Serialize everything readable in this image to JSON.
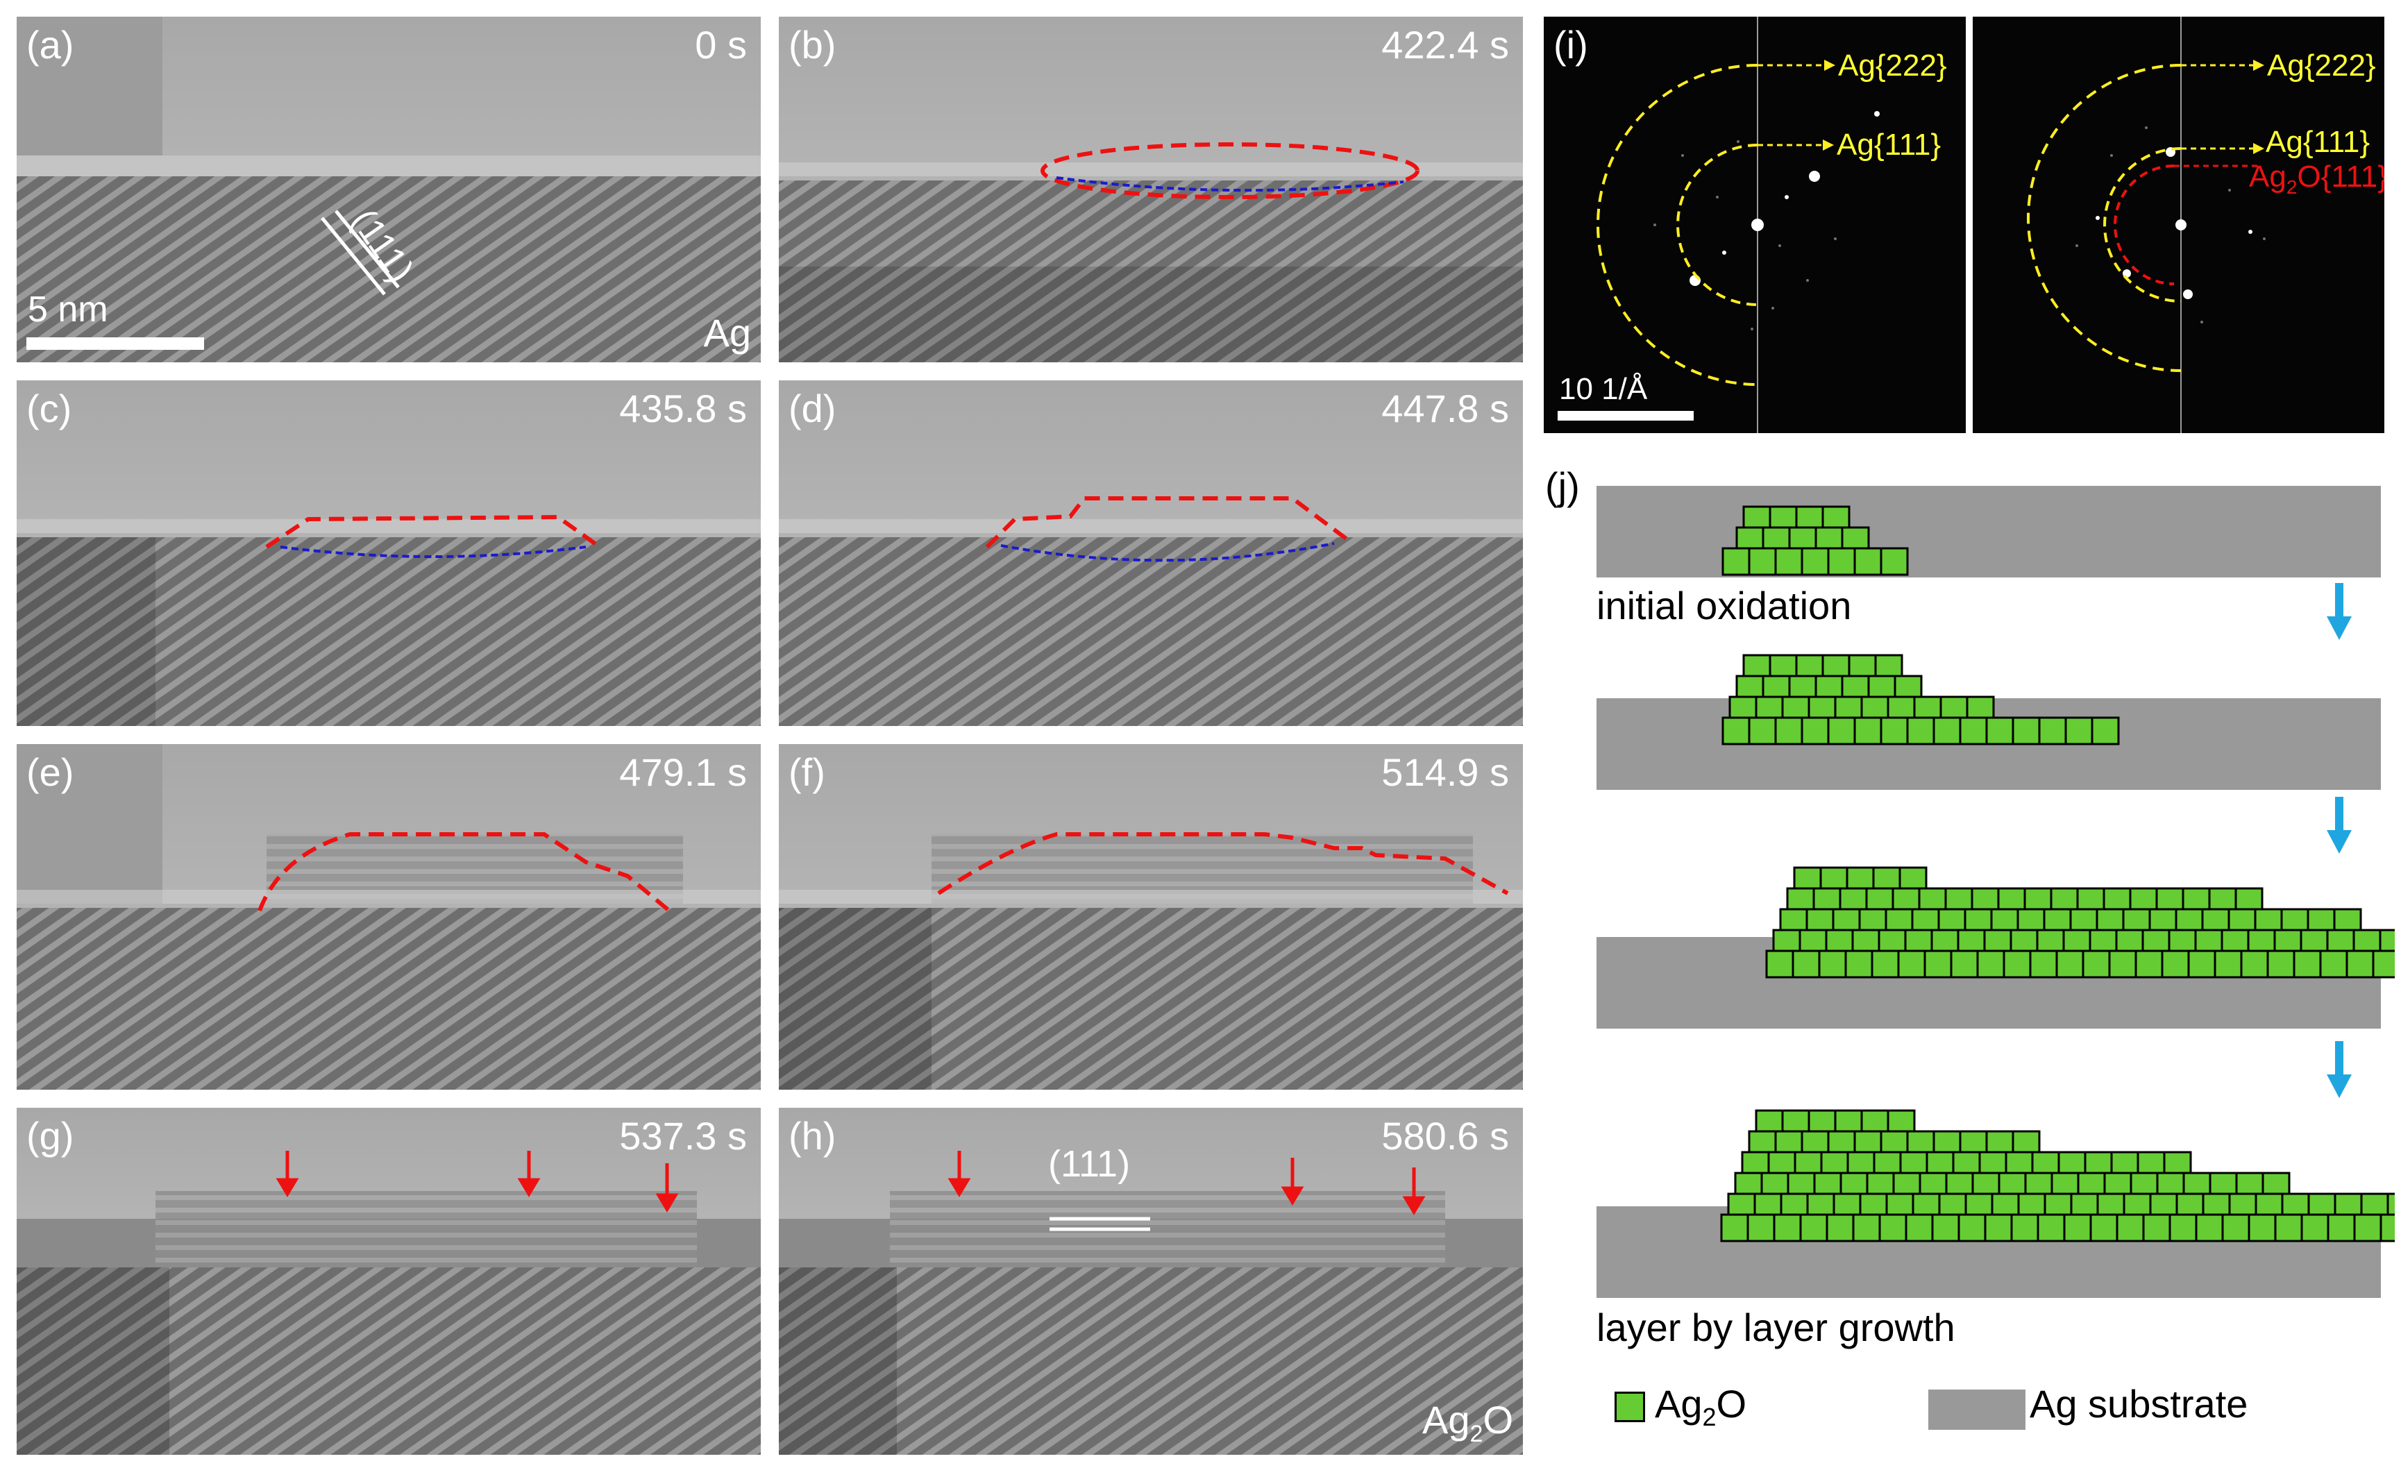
{
  "panels": [
    {
      "label": "(a)",
      "time": "0 s",
      "corner": "Ag",
      "scalebar": "5 nm",
      "plane": "(111)"
    },
    {
      "label": "(b)",
      "time": "422.4 s"
    },
    {
      "label": "(c)",
      "time": "435.8 s"
    },
    {
      "label": "(d)",
      "time": "447.8 s"
    },
    {
      "label": "(e)",
      "time": "479.1 s"
    },
    {
      "label": "(f)",
      "time": "514.9 s"
    },
    {
      "label": "(g)",
      "time": "537.3 s"
    },
    {
      "label": "(h)",
      "time": "580.6 s",
      "corner_base": "Ag",
      "corner_sub": "2",
      "corner_tail": "O",
      "plane": "(111)"
    }
  ],
  "fft": {
    "label": "(i)",
    "scalebar": "10 1/Å",
    "ring_outer": "Ag{222}",
    "ring_inner": "Ag{111}",
    "oxide_base": "Ag",
    "oxide_sub": "2",
    "oxide_tail": "O{111}"
  },
  "schematic": {
    "label": "(j)",
    "step1": "initial oxidation",
    "step4": "layer by layer growth",
    "legend_oxide_base": "Ag",
    "legend_oxide_sub": "2",
    "legend_oxide_tail": "O",
    "legend_substrate": "Ag substrate",
    "colors": {
      "oxide": "#66cc33",
      "substrate": "#999999",
      "arrow": "#1fa6e0"
    }
  }
}
